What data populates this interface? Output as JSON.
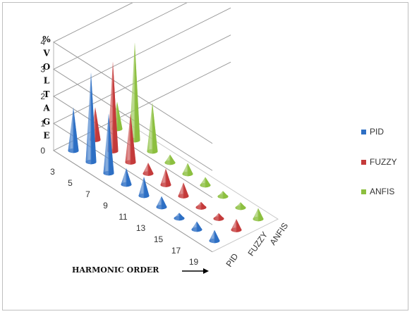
{
  "chart_data": {
    "type": "bar",
    "shape": "cone",
    "view": "3d",
    "ylabel": "% VOLTAGE",
    "xlabel": "HARMONIC ORDER",
    "ylim": [
      0,
      4
    ],
    "yticks": [
      "0",
      "1",
      "2",
      "3",
      "4"
    ],
    "categories": [
      "3",
      "5",
      "7",
      "9",
      "11",
      "13",
      "15",
      "17",
      "19"
    ],
    "series": [
      {
        "name": "PID",
        "color": "#2e6fc4",
        "values": [
          1.6,
          3.3,
          2.2,
          0.6,
          0.7,
          0.4,
          0.2,
          0.3,
          0.4
        ]
      },
      {
        "name": "FUZZY",
        "color": "#c43a3a",
        "values": [
          1.2,
          3.3,
          1.8,
          0.4,
          0.6,
          0.5,
          0.2,
          0.2,
          0.4
        ]
      },
      {
        "name": "ANFIS",
        "color": "#8cbf3f",
        "values": [
          1.0,
          3.6,
          1.8,
          0.3,
          0.4,
          0.3,
          0.2,
          0.2,
          0.4
        ]
      }
    ],
    "legend_position": "right",
    "grid": true
  }
}
